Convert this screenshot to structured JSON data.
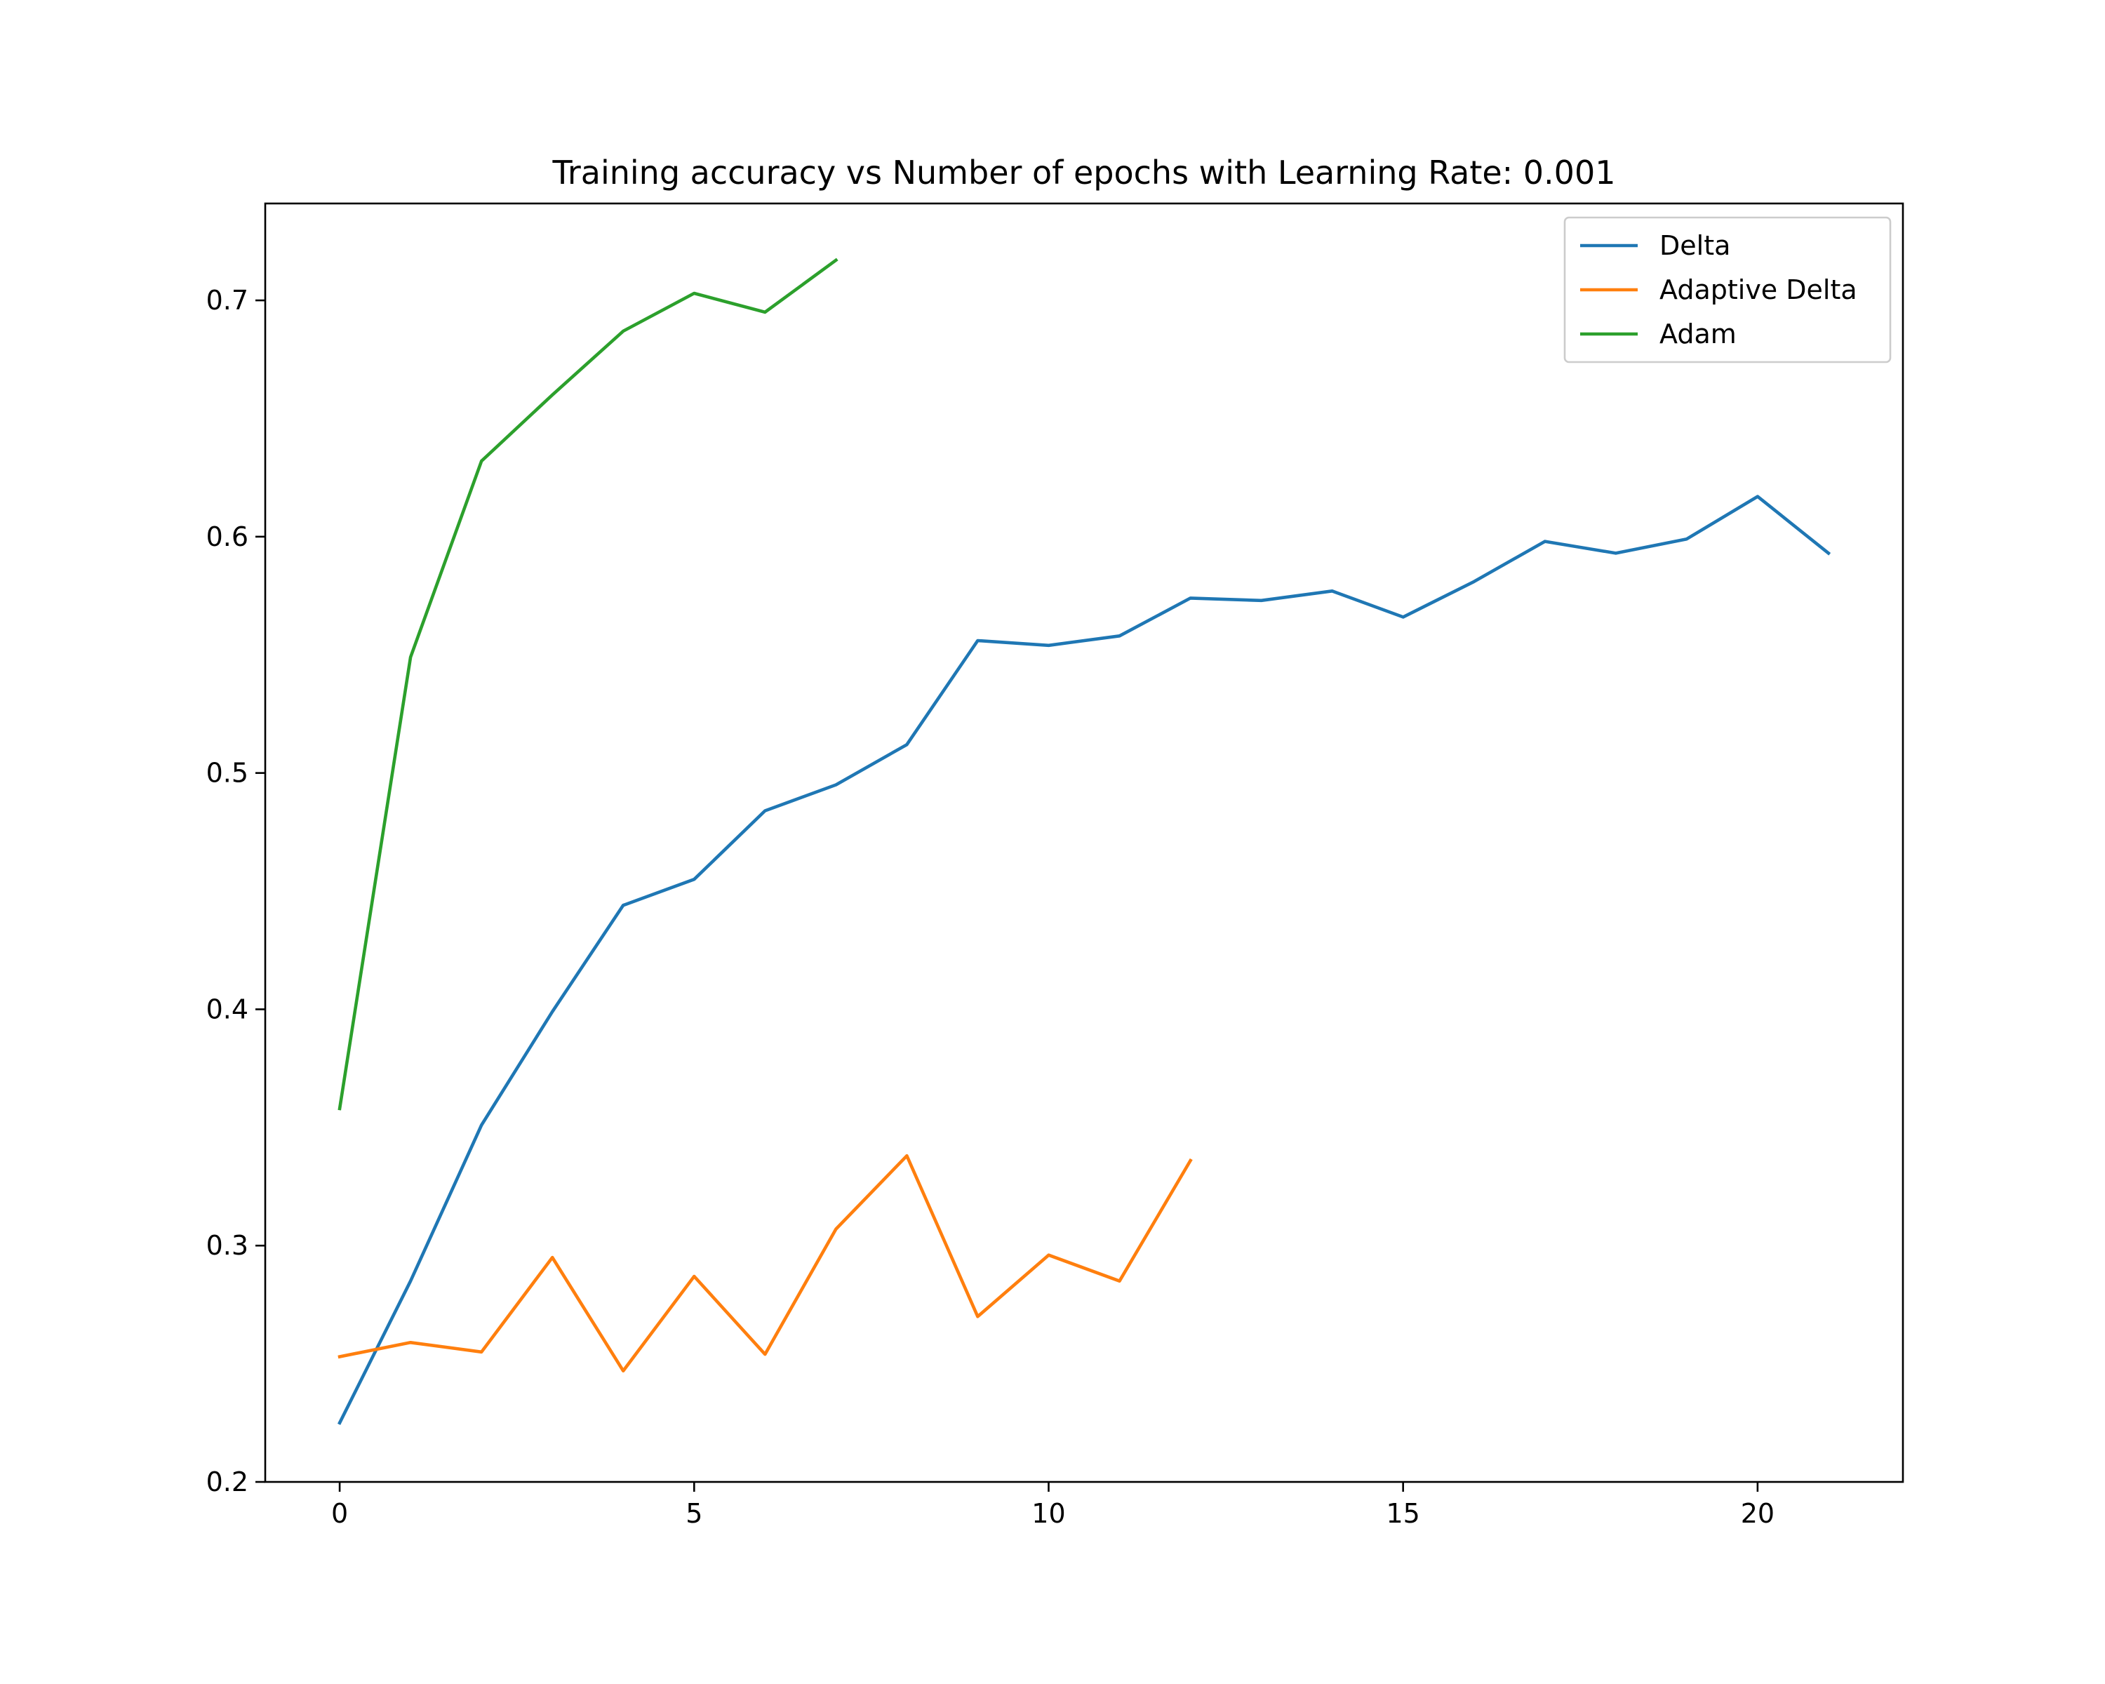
{
  "chart_data": {
    "type": "line",
    "title": "Training accuracy vs Number of epochs with Learning Rate: 0.001",
    "xlabel": "",
    "ylabel": "",
    "xlim": [
      -1.05,
      22.05
    ],
    "ylim": [
      0.2,
      0.741
    ],
    "grid": false,
    "legend_position": "top-right",
    "x_ticks": [
      0,
      5,
      10,
      15,
      20
    ],
    "x_tick_labels": [
      "0",
      "5",
      "10",
      "15",
      "20"
    ],
    "y_ticks": [
      0.2,
      0.3,
      0.4,
      0.5,
      0.6,
      0.7
    ],
    "y_tick_labels": [
      "0.2",
      "0.3",
      "0.4",
      "0.5",
      "0.6",
      "0.7"
    ],
    "series": [
      {
        "name": "Delta",
        "color": "#1f77b4",
        "x": [
          0,
          1,
          2,
          3,
          4,
          5,
          6,
          7,
          8,
          9,
          10,
          11,
          12,
          13,
          14,
          15,
          16,
          17,
          18,
          19,
          20,
          21
        ],
        "values": [
          0.225,
          0.285,
          0.351,
          0.399,
          0.444,
          0.455,
          0.484,
          0.495,
          0.512,
          0.556,
          0.554,
          0.558,
          0.574,
          0.573,
          0.577,
          0.566,
          0.581,
          0.598,
          0.593,
          0.599,
          0.617,
          0.593
        ]
      },
      {
        "name": "Adaptive Delta",
        "color": "#ff7f0e",
        "x": [
          0,
          1,
          2,
          3,
          4,
          5,
          6,
          7,
          8,
          9,
          10,
          11,
          12
        ],
        "values": [
          0.253,
          0.259,
          0.255,
          0.295,
          0.247,
          0.287,
          0.254,
          0.307,
          0.338,
          0.27,
          0.296,
          0.285,
          0.336
        ]
      },
      {
        "name": "Adam",
        "color": "#2ca02c",
        "x": [
          0,
          1,
          2,
          3,
          4,
          5,
          6,
          7
        ],
        "values": [
          0.358,
          0.549,
          0.632,
          0.66,
          0.687,
          0.703,
          0.695,
          0.717
        ]
      }
    ]
  }
}
